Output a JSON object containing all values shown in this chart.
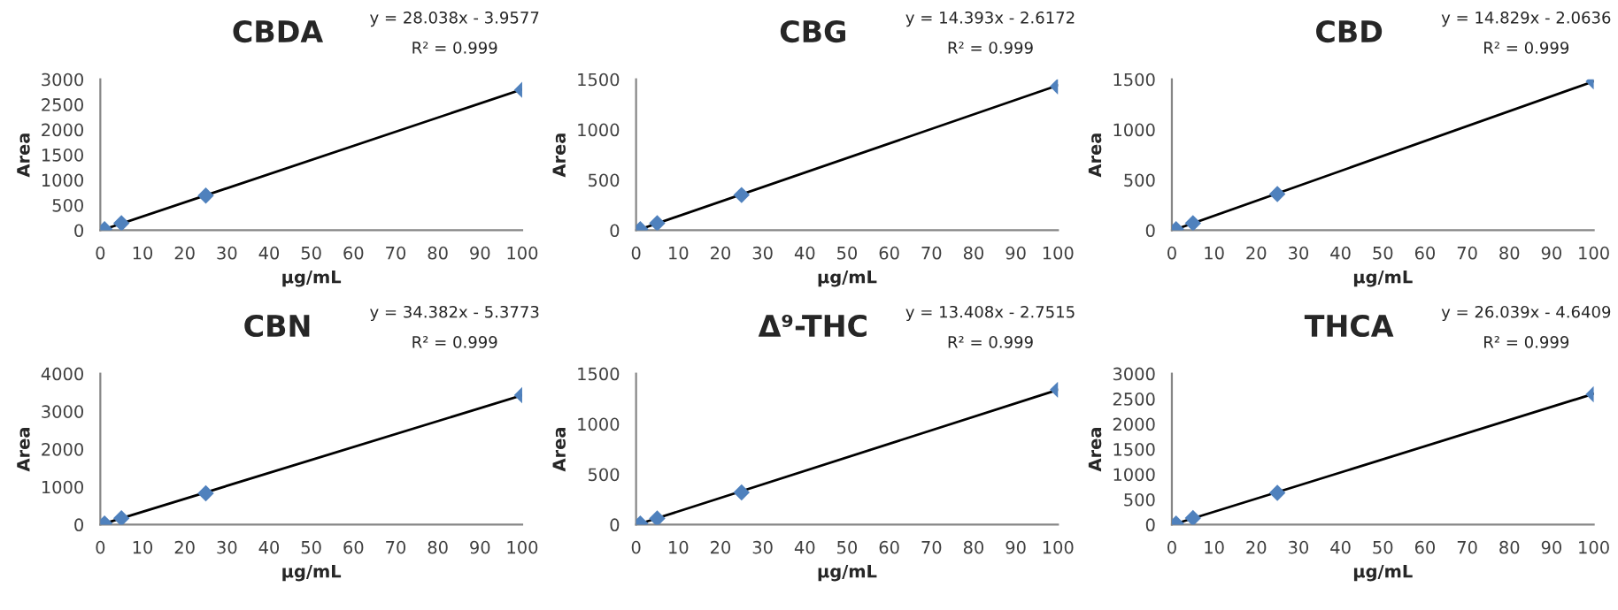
{
  "chart_data": [
    {
      "type": "scatter",
      "title": "CBDA",
      "xlabel": "µg/mL",
      "ylabel": "Area",
      "xlim": [
        0,
        100
      ],
      "xticks": [
        0,
        10,
        20,
        30,
        40,
        50,
        60,
        70,
        80,
        90,
        100
      ],
      "ylim": [
        0,
        3000
      ],
      "yticks": [
        0,
        500,
        1000,
        1500,
        2000,
        2500,
        3000
      ],
      "marker": "diamond",
      "annotations": [
        "y = 28.038x - 3.9577",
        "R² = 0.999"
      ],
      "series": [
        {
          "color": "#4f81bd",
          "x": [
            1,
            5,
            25,
            100
          ],
          "values": [
            20,
            140,
            690,
            2790
          ]
        },
        {
          "type": "line",
          "color": "#000000",
          "marker": "none",
          "x": [
            1,
            100
          ],
          "values": [
            20,
            2800
          ]
        }
      ]
    },
    {
      "type": "scatter",
      "title": "CBG",
      "xlabel": "µg/mL",
      "ylabel": "Area",
      "xlim": [
        0,
        100
      ],
      "xticks": [
        0,
        10,
        20,
        30,
        40,
        50,
        60,
        70,
        80,
        90,
        100
      ],
      "ylim": [
        0,
        1500
      ],
      "yticks": [
        0,
        500,
        1000,
        1500
      ],
      "marker": "diamond",
      "annotations": [
        "y = 14.393x - 2.6172",
        "R² = 0.999"
      ],
      "series": [
        {
          "color": "#4f81bd",
          "x": [
            1,
            5,
            25,
            100
          ],
          "values": [
            10,
            70,
            350,
            1430
          ]
        },
        {
          "type": "line",
          "color": "#000000",
          "marker": "none",
          "x": [
            1,
            100
          ],
          "values": [
            10,
            1440
          ]
        }
      ]
    },
    {
      "type": "scatter",
      "title": "CBD",
      "xlabel": "µg/mL",
      "ylabel": "Area",
      "xlim": [
        0,
        100
      ],
      "xticks": [
        0,
        10,
        20,
        30,
        40,
        50,
        60,
        70,
        80,
        90,
        100
      ],
      "ylim": [
        0,
        1500
      ],
      "yticks": [
        0,
        500,
        1000,
        1500
      ],
      "marker": "diamond",
      "annotations": [
        "y = 14.829x - 2.0636",
        "R² = 0.999"
      ],
      "series": [
        {
          "color": "#4f81bd",
          "x": [
            1,
            5,
            25,
            100
          ],
          "values": [
            10,
            70,
            360,
            1480
          ]
        },
        {
          "type": "line",
          "color": "#000000",
          "marker": "none",
          "x": [
            1,
            100
          ],
          "values": [
            10,
            1480
          ]
        }
      ]
    },
    {
      "type": "scatter",
      "title": "CBN",
      "xlabel": "µg/mL",
      "ylabel": "Area",
      "xlim": [
        0,
        100
      ],
      "xticks": [
        0,
        10,
        20,
        30,
        40,
        50,
        60,
        70,
        80,
        90,
        100
      ],
      "ylim": [
        0,
        4000
      ],
      "yticks": [
        0,
        1000,
        2000,
        3000,
        4000
      ],
      "marker": "diamond",
      "annotations": [
        "y = 34.382x - 5.3773",
        "R² = 0.999"
      ],
      "series": [
        {
          "color": "#4f81bd",
          "x": [
            1,
            5,
            25,
            100
          ],
          "values": [
            30,
            170,
            830,
            3430
          ]
        },
        {
          "type": "line",
          "color": "#000000",
          "marker": "none",
          "x": [
            1,
            100
          ],
          "values": [
            30,
            3430
          ]
        }
      ]
    },
    {
      "type": "scatter",
      "title": "Δ⁹-THC",
      "xlabel": "µg/mL",
      "ylabel": "Area",
      "xlim": [
        0,
        100
      ],
      "xticks": [
        0,
        10,
        20,
        30,
        40,
        50,
        60,
        70,
        80,
        90,
        100
      ],
      "ylim": [
        0,
        1500
      ],
      "yticks": [
        0,
        500,
        1000,
        1500
      ],
      "marker": "diamond",
      "annotations": [
        "y = 13.408x - 2.7515",
        "R² = 0.999"
      ],
      "series": [
        {
          "color": "#4f81bd",
          "x": [
            1,
            5,
            25,
            100
          ],
          "values": [
            10,
            60,
            320,
            1340
          ]
        },
        {
          "type": "line",
          "color": "#000000",
          "marker": "none",
          "x": [
            1,
            100
          ],
          "values": [
            10,
            1340
          ]
        }
      ]
    },
    {
      "type": "scatter",
      "title": "THCA",
      "xlabel": "µg/mL",
      "ylabel": "Area",
      "xlim": [
        0,
        100
      ],
      "xticks": [
        0,
        10,
        20,
        30,
        40,
        50,
        60,
        70,
        80,
        90,
        100
      ],
      "ylim": [
        0,
        3000
      ],
      "yticks": [
        0,
        500,
        1000,
        1500,
        2000,
        2500,
        3000
      ],
      "marker": "diamond",
      "annotations": [
        "y = 26.039x - 4.6409",
        "R² = 0.999"
      ],
      "series": [
        {
          "color": "#4f81bd",
          "x": [
            1,
            5,
            25,
            100
          ],
          "values": [
            20,
            130,
            630,
            2590
          ]
        },
        {
          "type": "line",
          "color": "#000000",
          "marker": "none",
          "x": [
            1,
            100
          ],
          "values": [
            20,
            2600
          ]
        }
      ]
    }
  ]
}
